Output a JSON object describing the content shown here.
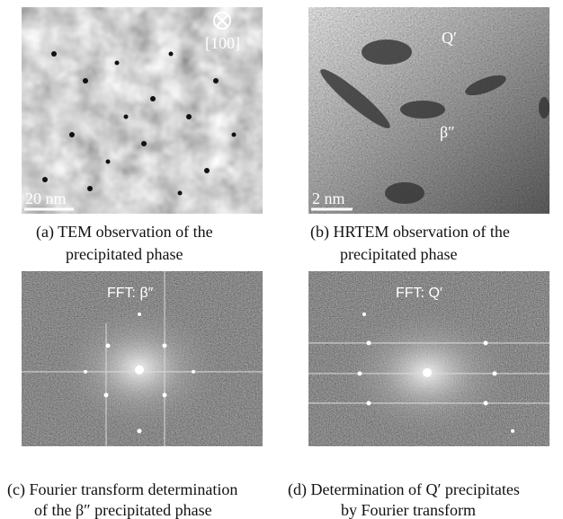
{
  "panels": [
    {
      "caption": [
        "(a) TEM observation of the",
        "precipitated phase"
      ],
      "labels": [
        "[100]",
        "20 nm"
      ]
    },
    {
      "caption": [
        "(b) HRTEM observation of the",
        "precipitated phase"
      ],
      "labels": [
        "Q′",
        "β″",
        "2 nm"
      ]
    },
    {
      "caption": [
        "(c) Fourier transform determination",
        "of the β″ precipitated phase"
      ],
      "labels": [
        "FFT: β″"
      ]
    },
    {
      "caption": [
        "(d) Determination of Q′ precipitates",
        "by Fourier transform"
      ],
      "labels": [
        "FFT: Q′"
      ]
    }
  ]
}
